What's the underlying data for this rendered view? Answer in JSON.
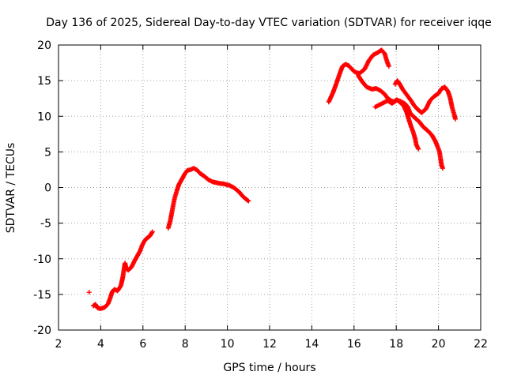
{
  "chart_data": {
    "type": "scatter",
    "title": "Day 136 of 2025, Sidereal Day-to-day VTEC variation (SDTVAR) for receiver iqqe",
    "xlabel": "GPS time / hours",
    "ylabel": "SDTVAR / TECUs",
    "xlim": [
      2,
      22
    ],
    "ylim": [
      -20,
      20
    ],
    "xticks": [
      2,
      4,
      6,
      8,
      10,
      12,
      14,
      16,
      18,
      20,
      22
    ],
    "yticks": [
      -20,
      -15,
      -10,
      -5,
      0,
      5,
      10,
      15,
      20
    ],
    "grid": true,
    "legend": "none",
    "marker": "+",
    "color": "#ff0000",
    "series": [
      {
        "name": "outlier",
        "points": [
          [
            3.45,
            -14.7
          ]
        ]
      },
      {
        "name": "seg1",
        "points": [
          [
            3.65,
            -16.6
          ],
          [
            3.75,
            -16.4
          ],
          [
            3.85,
            -16.9
          ],
          [
            4.0,
            -17.0
          ],
          [
            4.2,
            -16.8
          ],
          [
            4.35,
            -16.3
          ],
          [
            4.45,
            -15.5
          ],
          [
            4.55,
            -14.6
          ],
          [
            4.65,
            -14.3
          ],
          [
            4.8,
            -14.5
          ],
          [
            4.95,
            -13.8
          ],
          [
            5.0,
            -13.2
          ],
          [
            5.05,
            -12.5
          ],
          [
            5.1,
            -11.5
          ],
          [
            5.15,
            -10.6
          ],
          [
            5.2,
            -11.3
          ],
          [
            5.3,
            -11.6
          ],
          [
            5.45,
            -11.2
          ],
          [
            5.6,
            -10.3
          ],
          [
            5.75,
            -9.5
          ],
          [
            5.85,
            -9.0
          ],
          [
            5.95,
            -8.2
          ],
          [
            6.05,
            -7.6
          ],
          [
            6.15,
            -7.2
          ],
          [
            6.25,
            -7.0
          ],
          [
            6.35,
            -6.7
          ],
          [
            6.45,
            -6.2
          ]
        ]
      },
      {
        "name": "seg2",
        "points": [
          [
            7.2,
            -5.7
          ],
          [
            7.3,
            -4.6
          ],
          [
            7.4,
            -3.0
          ],
          [
            7.5,
            -1.5
          ],
          [
            7.6,
            -0.5
          ],
          [
            7.7,
            0.4
          ],
          [
            7.85,
            1.2
          ],
          [
            8.0,
            2.0
          ],
          [
            8.1,
            2.4
          ],
          [
            8.25,
            2.5
          ],
          [
            8.4,
            2.7
          ],
          [
            8.55,
            2.5
          ],
          [
            8.7,
            2.0
          ],
          [
            8.9,
            1.6
          ],
          [
            9.1,
            1.1
          ],
          [
            9.3,
            0.8
          ],
          [
            9.6,
            0.6
          ],
          [
            9.85,
            0.5
          ],
          [
            10.1,
            0.3
          ],
          [
            10.3,
            0.0
          ],
          [
            10.55,
            -0.6
          ],
          [
            10.75,
            -1.3
          ],
          [
            11.0,
            -1.9
          ]
        ]
      },
      {
        "name": "seg3",
        "points": [
          [
            14.8,
            12.0
          ],
          [
            15.0,
            13.3
          ],
          [
            15.15,
            14.5
          ],
          [
            15.3,
            15.8
          ],
          [
            15.45,
            17.0
          ],
          [
            15.6,
            17.3
          ],
          [
            15.75,
            17.1
          ],
          [
            15.9,
            16.6
          ],
          [
            16.05,
            16.2
          ],
          [
            16.25,
            16.0
          ],
          [
            16.5,
            16.6
          ],
          [
            16.7,
            17.8
          ],
          [
            16.9,
            18.6
          ],
          [
            17.1,
            18.9
          ],
          [
            17.3,
            19.3
          ],
          [
            17.45,
            18.8
          ],
          [
            17.55,
            17.8
          ],
          [
            17.65,
            17.0
          ]
        ]
      },
      {
        "name": "seg4",
        "points": [
          [
            16.2,
            15.7
          ],
          [
            16.4,
            14.8
          ],
          [
            16.6,
            14.1
          ],
          [
            16.85,
            13.8
          ],
          [
            17.05,
            13.9
          ],
          [
            17.25,
            13.6
          ],
          [
            17.45,
            13.1
          ],
          [
            17.6,
            12.5
          ],
          [
            17.75,
            12.2
          ],
          [
            17.9,
            12.0
          ],
          [
            18.05,
            12.3
          ],
          [
            18.2,
            11.9
          ],
          [
            18.35,
            11.5
          ],
          [
            18.5,
            10.5
          ],
          [
            18.6,
            9.5
          ],
          [
            18.7,
            8.6
          ],
          [
            18.8,
            7.8
          ],
          [
            18.9,
            6.8
          ],
          [
            18.95,
            6.0
          ],
          [
            19.05,
            5.4
          ]
        ]
      },
      {
        "name": "seg5",
        "points": [
          [
            17.0,
            11.3
          ],
          [
            17.2,
            11.6
          ],
          [
            17.4,
            11.9
          ],
          [
            17.6,
            12.2
          ],
          [
            17.8,
            11.8
          ],
          [
            18.0,
            12.3
          ],
          [
            18.2,
            12.1
          ],
          [
            18.4,
            11.8
          ],
          [
            18.55,
            11.3
          ],
          [
            18.65,
            10.5
          ],
          [
            18.8,
            10.0
          ],
          [
            18.95,
            9.6
          ],
          [
            19.1,
            9.2
          ],
          [
            19.25,
            8.6
          ],
          [
            19.4,
            8.2
          ],
          [
            19.55,
            7.8
          ],
          [
            19.7,
            7.3
          ],
          [
            19.85,
            6.5
          ],
          [
            19.95,
            5.8
          ],
          [
            20.05,
            5.0
          ],
          [
            20.1,
            4.0
          ],
          [
            20.15,
            3.1
          ],
          [
            20.2,
            2.7
          ]
        ]
      },
      {
        "name": "seg6",
        "points": [
          [
            17.95,
            14.5
          ],
          [
            18.05,
            15.0
          ],
          [
            18.15,
            14.6
          ],
          [
            18.3,
            13.8
          ],
          [
            18.5,
            13.0
          ],
          [
            18.7,
            12.2
          ],
          [
            18.85,
            11.5
          ],
          [
            19.0,
            11.0
          ],
          [
            19.2,
            10.5
          ],
          [
            19.4,
            11.0
          ],
          [
            19.6,
            12.2
          ],
          [
            19.8,
            12.8
          ],
          [
            20.0,
            13.2
          ],
          [
            20.15,
            13.9
          ],
          [
            20.3,
            14.1
          ],
          [
            20.45,
            13.5
          ],
          [
            20.55,
            12.6
          ],
          [
            20.65,
            11.2
          ],
          [
            20.75,
            10.2
          ],
          [
            20.8,
            9.6
          ]
        ]
      }
    ]
  }
}
